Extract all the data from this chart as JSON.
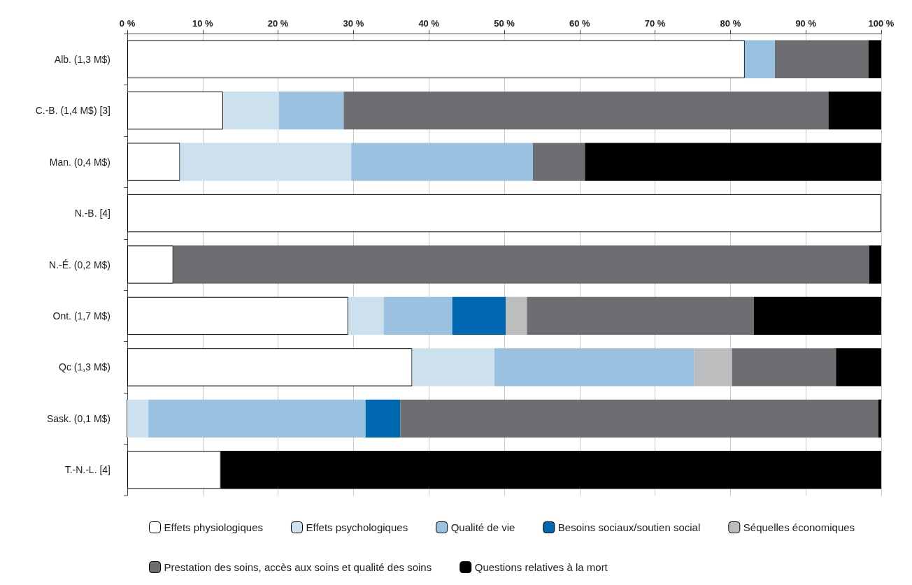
{
  "chart_data": {
    "type": "bar",
    "orientation": "horizontal",
    "stacked": true,
    "categories": [
      "Alb. (1,3 M$)",
      "C.-B. (1,4 M$) [3]",
      "Man. (0,4 M$)",
      "N.-B. [4]",
      "N.-É. (0,2 M$)",
      "Ont. (1,7 M$)",
      "Qc (1,3 M$)",
      "Sask. (0,1 M$)",
      "T.-N.-L. [4]"
    ],
    "series": [
      {
        "name": "Effets physiologiques",
        "color": "#ffffff",
        "values": [
          81.9,
          12.7,
          7.0,
          100,
          6.1,
          29.3,
          37.8,
          0,
          12.4
        ]
      },
      {
        "name": "Effets psychologiques",
        "color": "#cce0ee",
        "values": [
          0,
          7.4,
          22.7,
          0,
          0,
          4.7,
          10.9,
          2.8,
          0
        ]
      },
      {
        "name": "Qualité de vie",
        "color": "#9ac1e0",
        "values": [
          4.0,
          8.6,
          24.1,
          0,
          0,
          9.1,
          26.5,
          28.8,
          0
        ]
      },
      {
        "name": "Besoins sociaux/soutien social",
        "color": "#0067b1",
        "values": [
          0,
          0,
          0,
          0,
          0,
          7.1,
          0,
          4.6,
          0
        ]
      },
      {
        "name": "Séquelles économiques",
        "color": "#bcbdbf",
        "values": [
          0,
          0,
          0,
          0,
          0,
          2.8,
          5.0,
          0,
          0
        ]
      },
      {
        "name": "Prestation des soins, accès aux soins et qualité des soins",
        "color": "#6d6e72",
        "values": [
          12.4,
          64.3,
          6.9,
          0,
          92.3,
          30.1,
          13.8,
          63.4,
          0
        ]
      },
      {
        "name": "Questions relatives à la mort",
        "color": "#000000",
        "values": [
          1.7,
          7.0,
          39.3,
          0,
          1.6,
          16.9,
          6.0,
          0.4,
          87.6
        ]
      }
    ],
    "xlim": [
      0,
      100
    ],
    "xticks": [
      {
        "value": 0,
        "label": "0 %"
      },
      {
        "value": 10,
        "label": "10 %"
      },
      {
        "value": 20,
        "label": "20 %"
      },
      {
        "value": 30,
        "label": "30 %"
      },
      {
        "value": 40,
        "label": "40 %"
      },
      {
        "value": 50,
        "label": "50 %"
      },
      {
        "value": 60,
        "label": "60 %"
      },
      {
        "value": 70,
        "label": "70 %"
      },
      {
        "value": 80,
        "label": "80 %"
      },
      {
        "value": 90,
        "label": "90 %"
      },
      {
        "value": 100,
        "label": "100 %"
      }
    ],
    "grid": "x",
    "legend": "bottom"
  }
}
